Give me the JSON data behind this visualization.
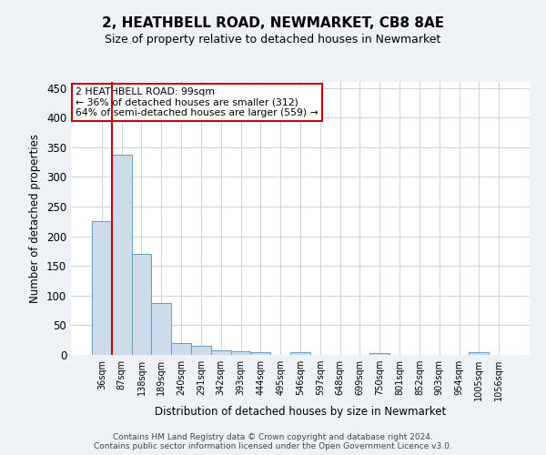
{
  "title": "2, HEATHBELL ROAD, NEWMARKET, CB8 8AE",
  "subtitle": "Size of property relative to detached houses in Newmarket",
  "xlabel": "Distribution of detached houses by size in Newmarket",
  "ylabel": "Number of detached properties",
  "categories": [
    "36sqm",
    "87sqm",
    "138sqm",
    "189sqm",
    "240sqm",
    "291sqm",
    "342sqm",
    "393sqm",
    "444sqm",
    "495sqm",
    "546sqm",
    "597sqm",
    "648sqm",
    "699sqm",
    "750sqm",
    "801sqm",
    "852sqm",
    "903sqm",
    "954sqm",
    "1005sqm",
    "1056sqm"
  ],
  "values": [
    225,
    338,
    170,
    88,
    20,
    15,
    7,
    6,
    5,
    0,
    4,
    0,
    0,
    0,
    3,
    0,
    0,
    0,
    0,
    4,
    0
  ],
  "bar_color": "#cddcea",
  "bar_edge_color": "#6a9bbf",
  "vline_color": "#cc0000",
  "annotation_text": "2 HEATHBELL ROAD: 99sqm\n← 36% of detached houses are smaller (312)\n64% of semi-detached houses are larger (559) →",
  "annotation_box_color": "#ffffff",
  "annotation_box_edge": "#cc0000",
  "ylim": [
    0,
    460
  ],
  "yticks": [
    0,
    50,
    100,
    150,
    200,
    250,
    300,
    350,
    400,
    450
  ],
  "footer_text": "Contains HM Land Registry data © Crown copyright and database right 2024.\nContains public sector information licensed under the Open Government Licence v3.0.",
  "background_color": "#eef2f7",
  "plot_background": "#ffffff",
  "grid_color": "#c8d4e0"
}
